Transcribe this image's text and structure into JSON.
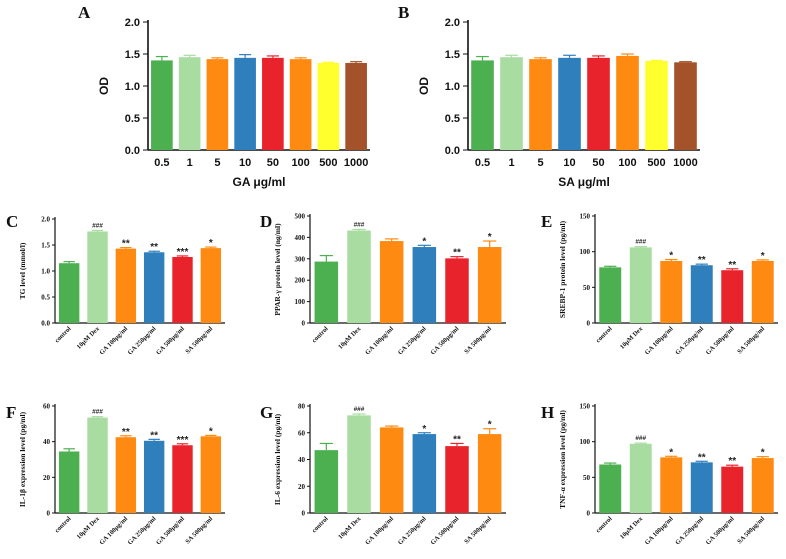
{
  "palette": {
    "green": "#4caf50",
    "lightgreen": "#a8dca0",
    "orange": "#ff8a12",
    "blue": "#2f7fbd",
    "red": "#e8232b",
    "yellow": "#ffff2e",
    "brown": "#a4522a",
    "axis": "#111111",
    "error": "#555555"
  },
  "chart_data": [
    {
      "panel": "A",
      "type": "bar",
      "style": "large",
      "categories": [
        "0.5",
        "1",
        "5",
        "10",
        "50",
        "100",
        "500",
        "1000"
      ],
      "values": [
        1.4,
        1.45,
        1.42,
        1.44,
        1.44,
        1.42,
        1.36,
        1.36
      ],
      "errors": [
        0.06,
        0.03,
        0.02,
        0.05,
        0.03,
        0.02,
        0.01,
        0.02
      ],
      "colors": [
        "green",
        "lightgreen",
        "orange",
        "blue",
        "red",
        "orange",
        "yellow",
        "brown"
      ],
      "significance": [
        "",
        "",
        "",
        "",
        "",
        "",
        "",
        ""
      ],
      "xlabel": "GA μg/ml",
      "ylabel": "OD",
      "ylim": [
        0,
        2.0
      ],
      "yticks": [
        "0.0",
        "0.5",
        "1.0",
        "1.5",
        "2.0"
      ]
    },
    {
      "panel": "B",
      "type": "bar",
      "style": "large",
      "categories": [
        "0.5",
        "1",
        "5",
        "10",
        "50",
        "100",
        "500",
        "1000"
      ],
      "values": [
        1.4,
        1.45,
        1.42,
        1.44,
        1.44,
        1.47,
        1.39,
        1.37
      ],
      "errors": [
        0.06,
        0.03,
        0.02,
        0.04,
        0.03,
        0.03,
        0.01,
        0.01
      ],
      "colors": [
        "green",
        "lightgreen",
        "orange",
        "blue",
        "red",
        "orange",
        "yellow",
        "brown"
      ],
      "significance": [
        "",
        "",
        "",
        "",
        "",
        "",
        "",
        ""
      ],
      "xlabel": "SA μg/ml",
      "ylabel": "OD",
      "ylim": [
        0,
        2.0
      ],
      "yticks": [
        "0.0",
        "0.5",
        "1.0",
        "1.5",
        "2.0"
      ]
    },
    {
      "panel": "C",
      "type": "bar",
      "style": "small",
      "categories": [
        "control",
        "10μM Dex",
        "GA 100μg/ml",
        "GA 250μg/ml",
        "GA 500μg/ml",
        "SA 500μg/ml"
      ],
      "values": [
        1.15,
        1.76,
        1.43,
        1.36,
        1.27,
        1.44
      ],
      "errors": [
        0.03,
        0.02,
        0.02,
        0.02,
        0.02,
        0.02
      ],
      "colors": [
        "green",
        "lightgreen",
        "orange",
        "blue",
        "red",
        "orange"
      ],
      "significance": [
        "",
        "###",
        "**",
        "**",
        "***",
        "*"
      ],
      "xlabel": "",
      "ylabel": "TG level (mmol/l)",
      "ylim": [
        0,
        2.0
      ],
      "yticks": [
        "0.0",
        "0.5",
        "1.0",
        "1.5",
        "2.0"
      ]
    },
    {
      "panel": "D",
      "type": "bar",
      "style": "small",
      "categories": [
        "control",
        "10μM Dex",
        "GA 100μg/ml",
        "GA 250μg/ml",
        "GA 500μg/ml",
        "SA 500μg/ml"
      ],
      "values": [
        287,
        432,
        383,
        355,
        302,
        355
      ],
      "errors": [
        28,
        5,
        10,
        8,
        8,
        28
      ],
      "colors": [
        "green",
        "lightgreen",
        "orange",
        "blue",
        "red",
        "orange"
      ],
      "significance": [
        "",
        "###",
        "",
        "*",
        "**",
        "*"
      ],
      "xlabel": "",
      "ylabel": "PPAR-γ protein level (ng/ml)",
      "ylim": [
        0,
        500
      ],
      "yticks": [
        "0",
        "100",
        "200",
        "300",
        "400",
        "500"
      ]
    },
    {
      "panel": "E",
      "type": "bar",
      "style": "small",
      "categories": [
        "control",
        "10μM Dex",
        "GA 100μg/ml",
        "GA 250μg/ml",
        "GA 500μg/ml",
        "SA 500μg/ml"
      ],
      "values": [
        78,
        106,
        87,
        81,
        74,
        87
      ],
      "errors": [
        1.5,
        1,
        2,
        1.5,
        2,
        1.5
      ],
      "colors": [
        "green",
        "lightgreen",
        "orange",
        "blue",
        "red",
        "orange"
      ],
      "significance": [
        "",
        "###",
        "*",
        "**",
        "**",
        "*"
      ],
      "xlabel": "",
      "ylabel": "SREBP-1 protein level (pg/ml)",
      "ylim": [
        0,
        150
      ],
      "yticks": [
        "0",
        "50",
        "100",
        "150"
      ]
    },
    {
      "panel": "F",
      "type": "bar",
      "style": "small",
      "categories": [
        "control",
        "10μM Dex",
        "GA 100μg/ml",
        "GA 250μg/ml",
        "GA 500μg/ml",
        "SA 500μg/ml"
      ],
      "values": [
        34.5,
        53.5,
        42.5,
        40.5,
        38,
        43
      ],
      "errors": [
        1.5,
        0.5,
        0.8,
        0.8,
        0.8,
        0.5
      ],
      "colors": [
        "green",
        "lightgreen",
        "orange",
        "blue",
        "red",
        "orange"
      ],
      "significance": [
        "",
        "###",
        "**",
        "**",
        "***",
        "*"
      ],
      "xlabel": "",
      "ylabel": "IL-1β expression level (pg/ml)",
      "ylim": [
        0,
        60
      ],
      "yticks": [
        "0",
        "20",
        "40",
        "60"
      ]
    },
    {
      "panel": "G",
      "type": "bar",
      "style": "small",
      "categories": [
        "control",
        "10μM Dex",
        "GA 100μg/ml",
        "GA 250μg/ml",
        "GA 500μg/ml",
        "SA 500μg/ml"
      ],
      "values": [
        47,
        73,
        64,
        59,
        50,
        59
      ],
      "errors": [
        5,
        1,
        1,
        1,
        2,
        4
      ],
      "colors": [
        "green",
        "lightgreen",
        "orange",
        "blue",
        "red",
        "orange"
      ],
      "significance": [
        "",
        "###",
        "",
        "*",
        "**",
        "*"
      ],
      "xlabel": "",
      "ylabel": "IL-6 expression level (pg/ml)",
      "ylim": [
        0,
        80
      ],
      "yticks": [
        "0",
        "20",
        "40",
        "60",
        "80"
      ]
    },
    {
      "panel": "H",
      "type": "bar",
      "style": "small",
      "categories": [
        "control",
        "10μM Dex",
        "GA 100μg/ml",
        "GA 250μg/ml",
        "GA 500μg/ml",
        "SA 500μg/ml"
      ],
      "values": [
        68,
        97,
        78,
        71,
        65,
        77
      ],
      "errors": [
        2,
        1,
        1.5,
        1.5,
        2,
        2
      ],
      "colors": [
        "green",
        "lightgreen",
        "orange",
        "blue",
        "red",
        "orange"
      ],
      "significance": [
        "",
        "###",
        "*",
        "**",
        "**",
        "*"
      ],
      "xlabel": "",
      "ylabel": "TNF-α expression level (pg/ml)",
      "ylim": [
        0,
        150
      ],
      "yticks": [
        "0",
        "50",
        "100",
        "150"
      ]
    }
  ]
}
